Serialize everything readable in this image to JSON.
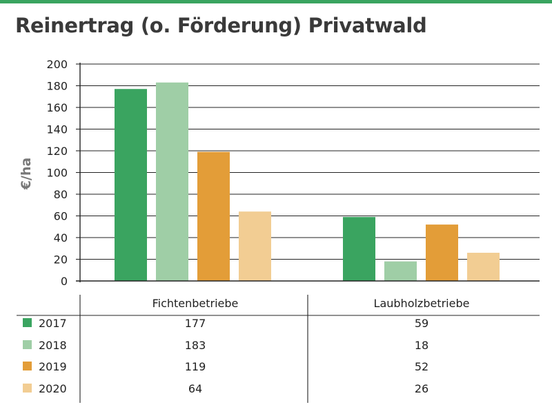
{
  "colors": {
    "top_bar": "#3aa460",
    "s2017": "#3aa460",
    "s2018": "#9fcea6",
    "s2019": "#e39d38",
    "s2020": "#f2cd93"
  },
  "chart_data": {
    "type": "bar",
    "title": "Reinertrag (o. Förderung) Privatwald",
    "ylabel": "€/ha",
    "ylim": [
      0,
      200
    ],
    "yticks": [
      0,
      20,
      40,
      60,
      80,
      100,
      120,
      140,
      160,
      180,
      200
    ],
    "grid": true,
    "categories": [
      "Fichtenbetriebe",
      "Laubholzbetriebe"
    ],
    "series": [
      {
        "name": "2017",
        "values": [
          177,
          59
        ],
        "color": "#3aa460"
      },
      {
        "name": "2018",
        "values": [
          183,
          18
        ],
        "color": "#9fcea6"
      },
      {
        "name": "2019",
        "values": [
          119,
          52
        ],
        "color": "#e39d38"
      },
      {
        "name": "2020",
        "values": [
          64,
          26
        ],
        "color": "#f2cd93"
      }
    ],
    "legend": "data-table-below"
  }
}
